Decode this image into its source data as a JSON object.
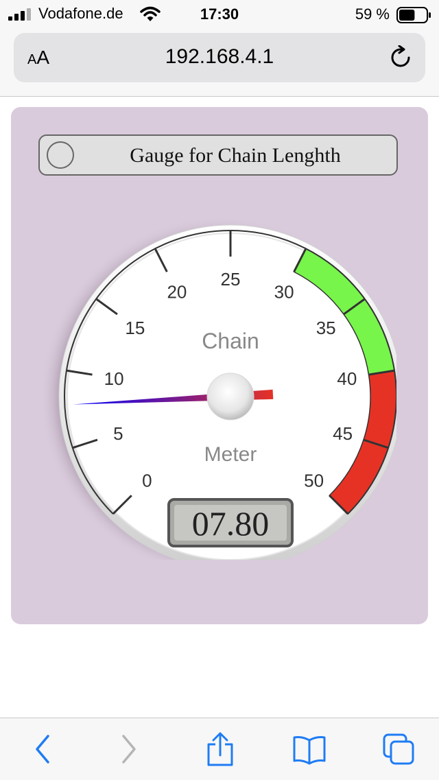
{
  "status_bar": {
    "carrier": "Vodafone.de",
    "time": "17:30",
    "battery_percent": "59 %",
    "battery_level": 0.59
  },
  "browser": {
    "text_size_label_small": "A",
    "text_size_label_large": "A",
    "url": "192.168.4.1"
  },
  "panel": {
    "title_button_label": "Gauge for Chain Lenghth",
    "background_color": "#d9cbdc"
  },
  "gauge": {
    "min": 0,
    "max": 50,
    "major_ticks": [
      0,
      5,
      10,
      15,
      20,
      25,
      30,
      35,
      40,
      45,
      50
    ],
    "tick_labels": [
      "0",
      "5",
      "10",
      "15",
      "20",
      "25",
      "30",
      "35",
      "40",
      "45",
      "50"
    ],
    "unit_top": "Chain",
    "unit_bottom": "Meter",
    "value": 7.8,
    "display_value": "07.80",
    "highlights": [
      {
        "from": 30,
        "to": 40,
        "color": "#77f54a"
      },
      {
        "from": 40,
        "to": 50,
        "color": "#e63225"
      }
    ],
    "needle_start_color": "#0000ff",
    "needle_end_color": "#e63225"
  },
  "toolbar": {
    "icons": [
      "back-icon",
      "forward-icon",
      "share-icon",
      "bookmarks-icon",
      "tabs-icon"
    ],
    "accent_color": "#1f7cf4",
    "disabled_color": "#b5b5b5"
  }
}
